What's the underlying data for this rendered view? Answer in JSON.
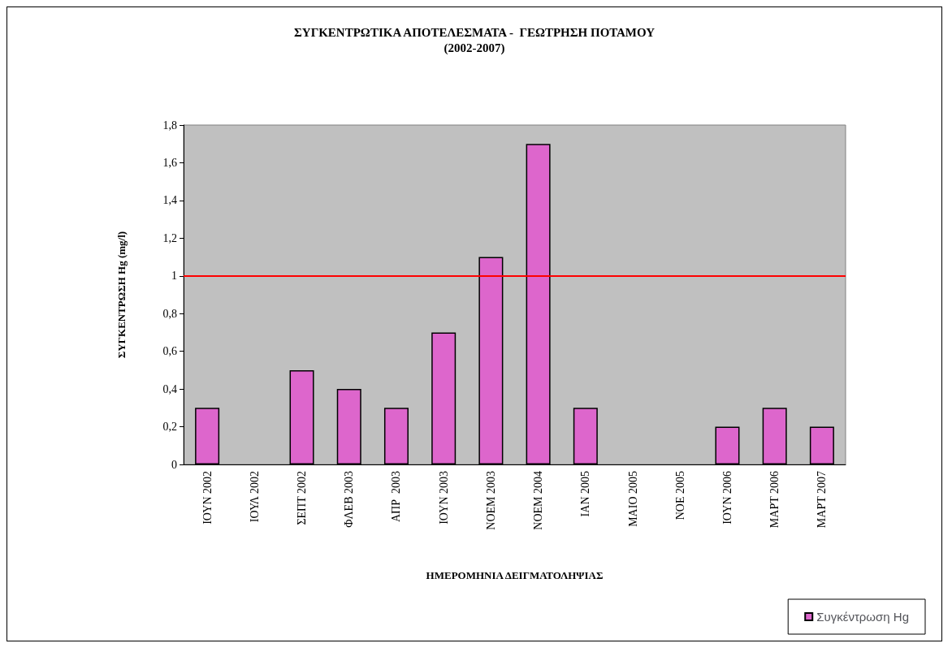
{
  "chart_data": {
    "type": "bar",
    "title": "ΣΥΓΚΕΝΤΡΩΤΙΚΑ ΑΠΟΤΕΛΕΣΜΑΤΑ -  ΓΕΩΤΡΗΣΗ ΠΟΤΑΜΟΥ",
    "subtitle": "(2002-2007)",
    "xlabel": "ΗΜΕΡΟΜΗΝΙΑ ΔΕΙΓΜΑΤΟΛΗΨΙΑΣ",
    "ylabel": "ΣΥΓΚΕΝΤΡΩΣΗ Hg (mg/l)",
    "categories": [
      "ΙΟΥΝ 2002",
      "ΙΟΥΛ 2002",
      "ΣΕΠΤ 2002",
      "ΦΛΕΒ 2003",
      "ΑΠΡ  2003",
      "ΙΟΥΝ 2003",
      "ΝΟΕΜ 2003",
      "ΝΟΕΜ 2004",
      "ΙΑΝ 2005",
      "ΜΑΙΟ 2005",
      "ΝΟΕ 2005",
      "ΙΟΥΝ 2006",
      "ΜΑΡΤ 2006",
      "ΜΑΡΤ 2007"
    ],
    "series": [
      {
        "name": "Συγκέντρωση Hg",
        "color": "#dd66cc",
        "values": [
          0.3,
          null,
          0.5,
          0.4,
          0.3,
          0.7,
          1.1,
          1.7,
          0.3,
          null,
          null,
          0.2,
          0.3,
          0.2
        ]
      }
    ],
    "ylim": [
      0,
      1.8
    ],
    "yticks": [
      0,
      {
        "value": 0.2,
        "label": "0,2"
      },
      {
        "value": 0.4,
        "label": "0,4"
      },
      {
        "value": 0.6,
        "label": "0,6"
      },
      {
        "value": 0.8,
        "label": "0,8"
      },
      1,
      {
        "value": 1.2,
        "label": "1,2"
      },
      {
        "value": 1.4,
        "label": "1,4"
      },
      {
        "value": 1.6,
        "label": "1,6"
      },
      {
        "value": 1.8,
        "label": "1,8"
      }
    ],
    "ref_lines": [
      {
        "axis": "y",
        "value": 1,
        "color": "#ff0000"
      }
    ],
    "grid": false,
    "legend": "bottom right"
  }
}
